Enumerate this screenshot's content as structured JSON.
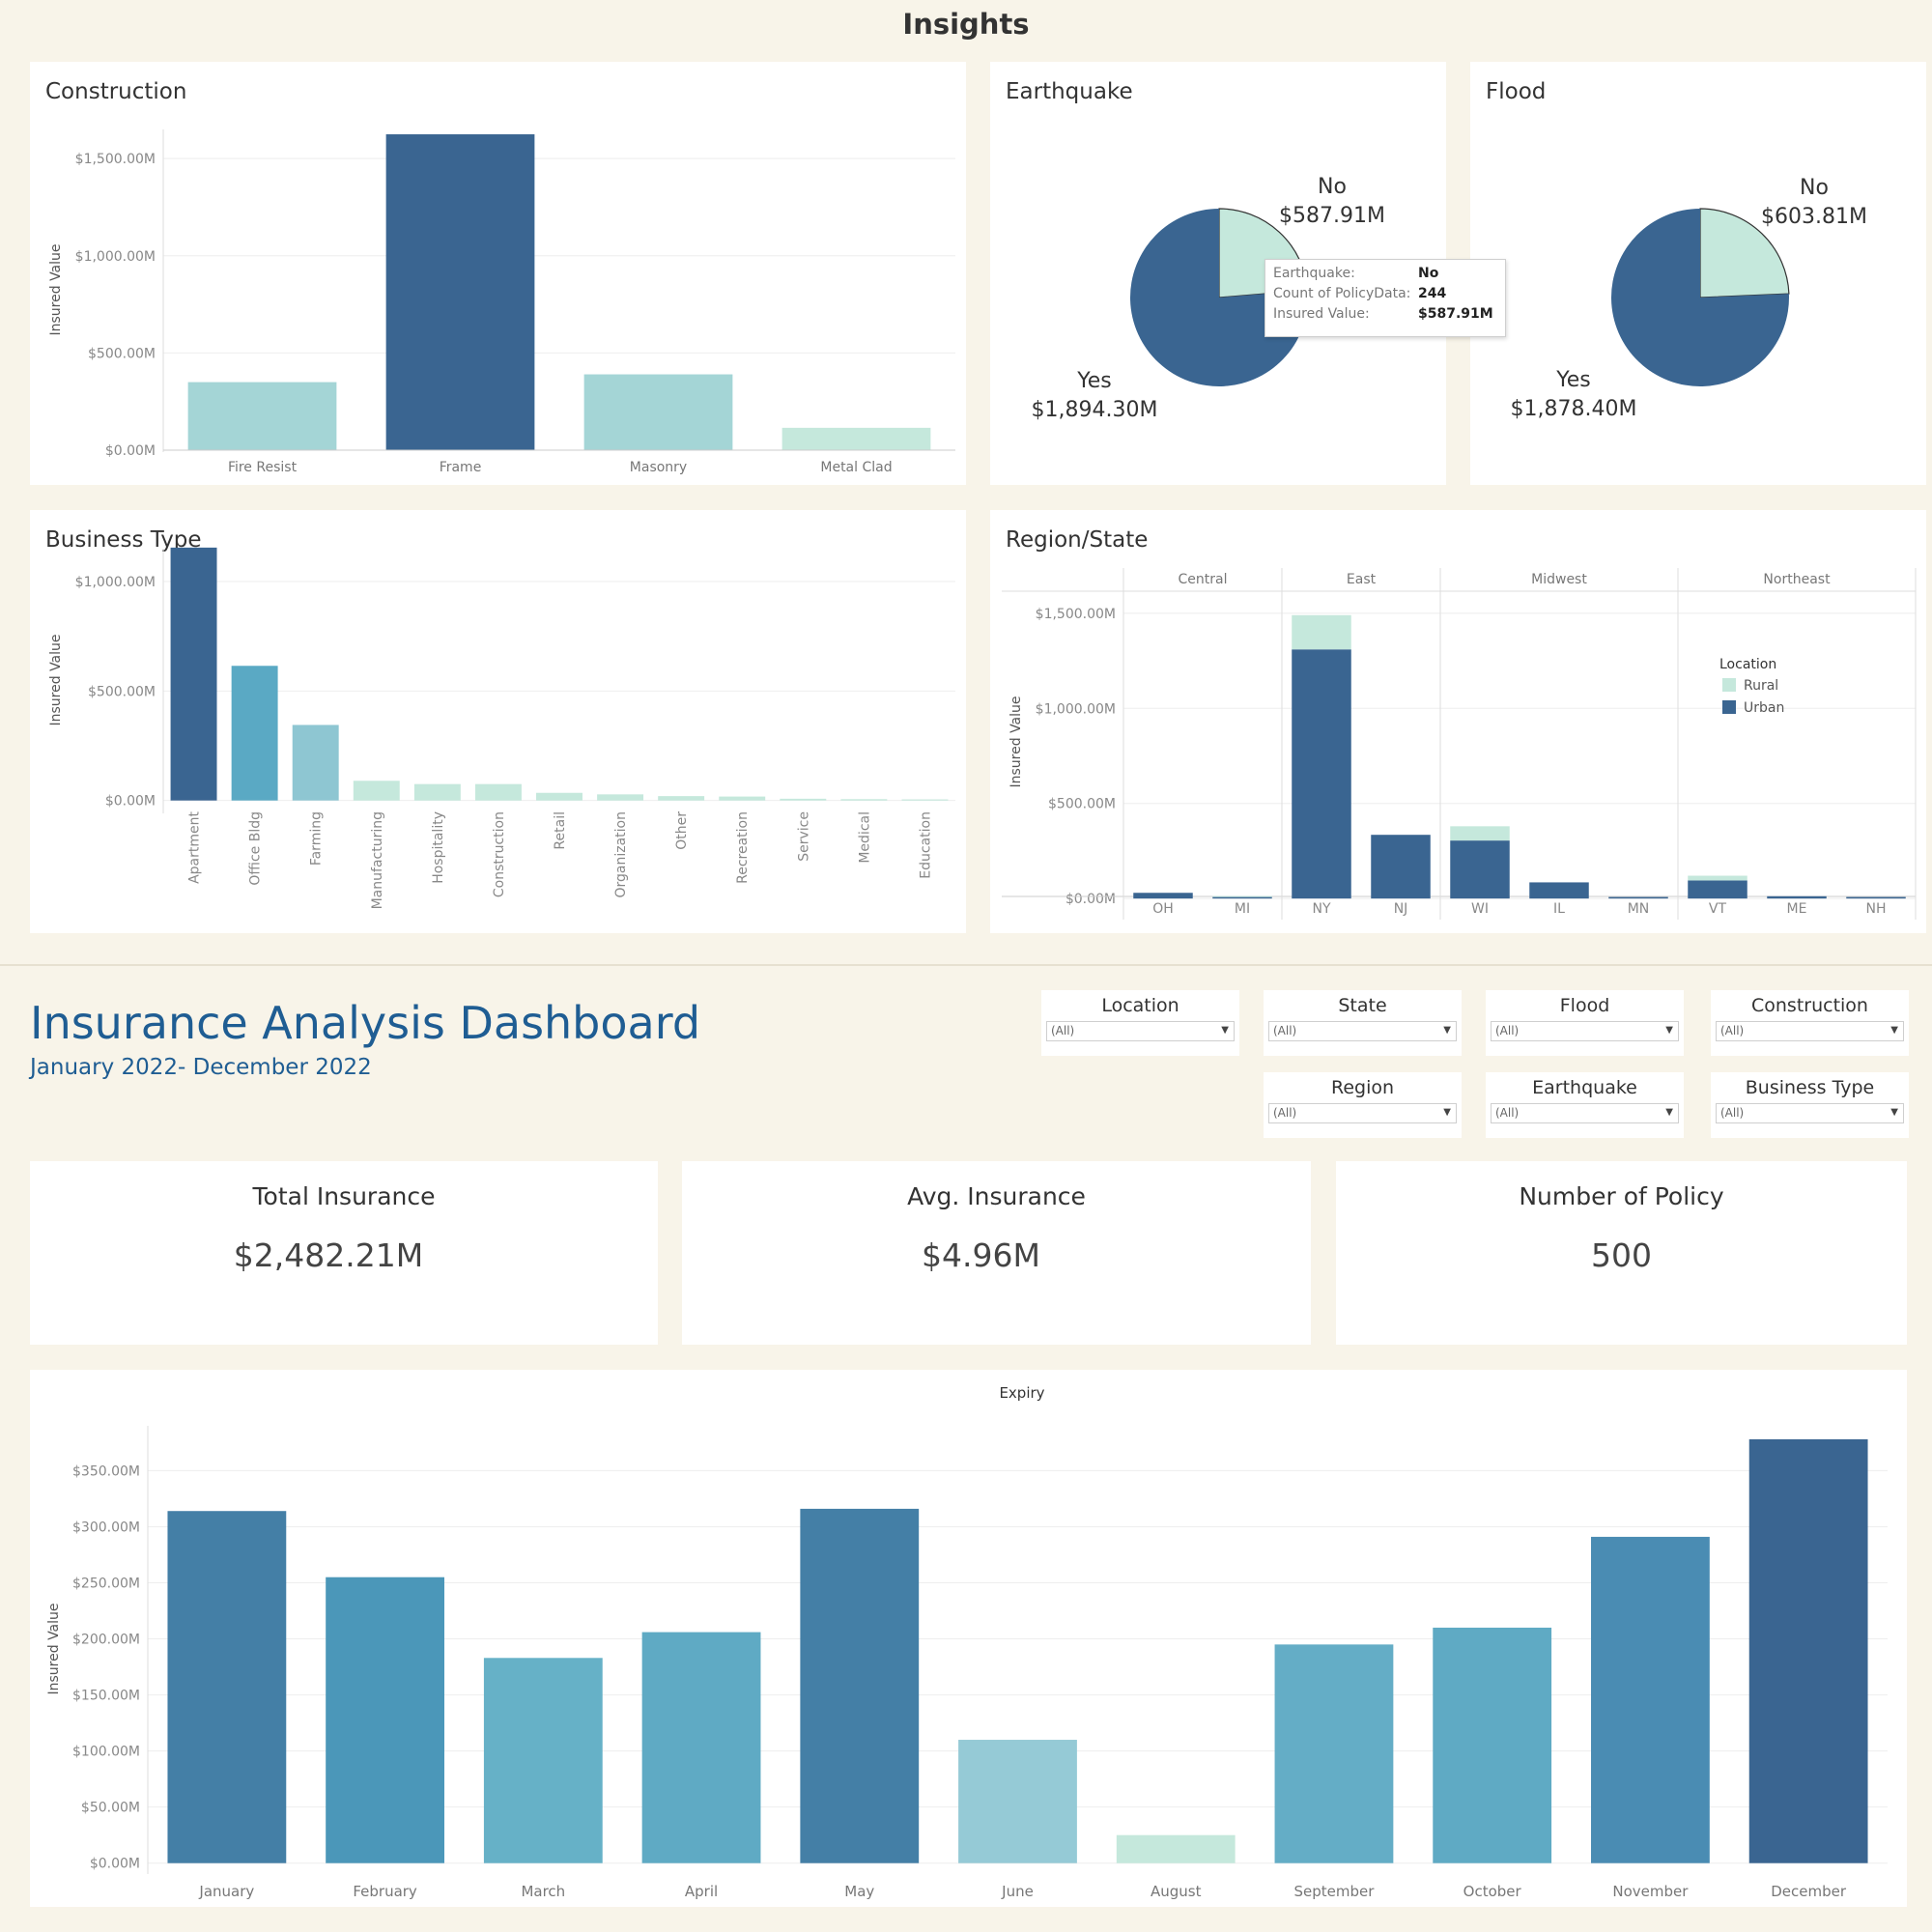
{
  "header": {
    "title": "Insights"
  },
  "dashboard": {
    "title": "Insurance Analysis Dashboard",
    "subtitle": "January 2022- December 2022"
  },
  "colors": {
    "background": "#f8f4e9",
    "title_blue": "#1f5d93",
    "dark_blue": "#3a6591",
    "light_teal": "#c5e8dc"
  },
  "filters": [
    {
      "label": "Location",
      "value": "(All)"
    },
    {
      "label": "State",
      "value": "(All)"
    },
    {
      "label": "Flood",
      "value": "(All)"
    },
    {
      "label": "Construction",
      "value": "(All)"
    },
    {
      "label": "Region",
      "value": "(All)"
    },
    {
      "label": "Earthquake",
      "value": "(All)"
    },
    {
      "label": "Business Type",
      "value": "(All)"
    }
  ],
  "kpis": [
    {
      "label": "Total Insurance",
      "value": "$2,482.21M"
    },
    {
      "label": "Avg. Insurance",
      "value": "$4.96M"
    },
    {
      "label": "Number of Policy",
      "value": "500"
    }
  ],
  "tooltip": {
    "rows": [
      {
        "key": "Earthquake:",
        "value": "No"
      },
      {
        "key": "Count of PolicyData:",
        "value": "244"
      },
      {
        "key": "Insured Value:",
        "value": "$587.91M"
      }
    ]
  },
  "chart_data": [
    {
      "id": "construction",
      "type": "bar",
      "title": "Construction",
      "ylabel": "Insured Value",
      "ylim": [
        0,
        1650
      ],
      "yticks": [
        0,
        500,
        1000,
        1500
      ],
      "ytick_labels": [
        "$0.00M",
        "$500.00M",
        "$1,000.00M",
        "$1,500.00M"
      ],
      "categories": [
        "Fire Resist",
        "Frame",
        "Masonry",
        "Metal Clad"
      ],
      "values": [
        350,
        1625,
        390,
        115
      ],
      "colors": [
        "#a4d5d6",
        "#3a6591",
        "#a4d5d6",
        "#c5e8dc"
      ]
    },
    {
      "id": "earthquake",
      "type": "pie",
      "title": "Earthquake",
      "slices": [
        {
          "label": "No",
          "value": 587.91,
          "value_label": "$587.91M",
          "color": "#c5e8dc"
        },
        {
          "label": "Yes",
          "value": 1894.3,
          "value_label": "$1,894.30M",
          "color": "#3a6591"
        }
      ]
    },
    {
      "id": "flood",
      "type": "pie",
      "title": "Flood",
      "slices": [
        {
          "label": "No",
          "value": 603.81,
          "value_label": "$603.81M",
          "color": "#c5e8dc"
        },
        {
          "label": "Yes",
          "value": 1878.4,
          "value_label": "$1,878.40M",
          "color": "#3a6591"
        }
      ]
    },
    {
      "id": "business",
      "type": "bar",
      "title": "Business Type",
      "ylabel": "Insured Value",
      "ylim": [
        -50,
        1150
      ],
      "yticks": [
        0,
        500,
        1000
      ],
      "ytick_labels": [
        "$0.00M",
        "$500.00M",
        "$1,000.00M"
      ],
      "categories": [
        "Apartment",
        "Office Bldg",
        "Farming",
        "Manufacturing",
        "Hospitality",
        "Construction",
        "Retail",
        "Organization",
        "Other",
        "Recreation",
        "Service",
        "Medical",
        "Education"
      ],
      "values": [
        1155,
        615,
        345,
        90,
        75,
        75,
        35,
        28,
        20,
        18,
        8,
        6,
        5
      ],
      "colors": [
        "#3a6591",
        "#5aa9c4",
        "#8ec6d2",
        "#c5e8dc",
        "#c5e8dc",
        "#c5e8dc",
        "#c5e8dc",
        "#c5e8dc",
        "#c5e8dc",
        "#c5e8dc",
        "#c5e8dc",
        "#c5e8dc",
        "#c5e8dc"
      ]
    },
    {
      "id": "region",
      "type": "bar",
      "title": "Region/State",
      "ylabel": "Insured Value",
      "ylim": [
        -50,
        1550
      ],
      "yticks": [
        0,
        500,
        1000,
        1500
      ],
      "ytick_labels": [
        "$0.00M",
        "$500.00M",
        "$1,000.00M",
        "$1,500.00M"
      ],
      "regions": [
        {
          "name": "Central",
          "states": [
            "OH",
            "MI"
          ]
        },
        {
          "name": "East",
          "states": [
            "NY",
            "NJ"
          ]
        },
        {
          "name": "Midwest",
          "states": [
            "WI",
            "IL",
            "MN"
          ]
        },
        {
          "name": "Northeast",
          "states": [
            "VT",
            "ME",
            "NH"
          ]
        }
      ],
      "states": [
        "OH",
        "MI",
        "NY",
        "NJ",
        "WI",
        "IL",
        "MN",
        "VT",
        "ME",
        "NH"
      ],
      "series": [
        {
          "name": "Urban",
          "color": "#3a6591",
          "values": [
            30,
            8,
            1310,
            335,
            305,
            85,
            8,
            95,
            12,
            8
          ]
        },
        {
          "name": "Rural",
          "color": "#c5e8dc",
          "values": [
            0,
            5,
            180,
            0,
            75,
            0,
            0,
            25,
            0,
            0
          ]
        }
      ],
      "legend": {
        "title": "Location",
        "position": "right",
        "items": [
          "Rural",
          "Urban"
        ]
      }
    },
    {
      "id": "expiry",
      "type": "bar",
      "title": "Expiry",
      "ylabel": "Insured Value",
      "ylim": [
        -8,
        390
      ],
      "yticks": [
        0,
        50,
        100,
        150,
        200,
        250,
        300,
        350
      ],
      "ytick_labels": [
        "$0.00M",
        "$50.00M",
        "$100.00M",
        "$150.00M",
        "$200.00M",
        "$250.00M",
        "$300.00M",
        "$350.00M"
      ],
      "categories": [
        "January",
        "February",
        "March",
        "April",
        "May",
        "June",
        "August",
        "September",
        "October",
        "November",
        "December"
      ],
      "values": [
        314,
        255,
        183,
        206,
        316,
        110,
        25,
        195,
        210,
        291,
        378
      ],
      "colors": [
        "#447fa6",
        "#4b97b9",
        "#66b1c7",
        "#5faac4",
        "#447fa6",
        "#95cad6",
        "#c5e8dc",
        "#64adc6",
        "#5faac4",
        "#4a8cb3",
        "#3a6591"
      ]
    }
  ]
}
